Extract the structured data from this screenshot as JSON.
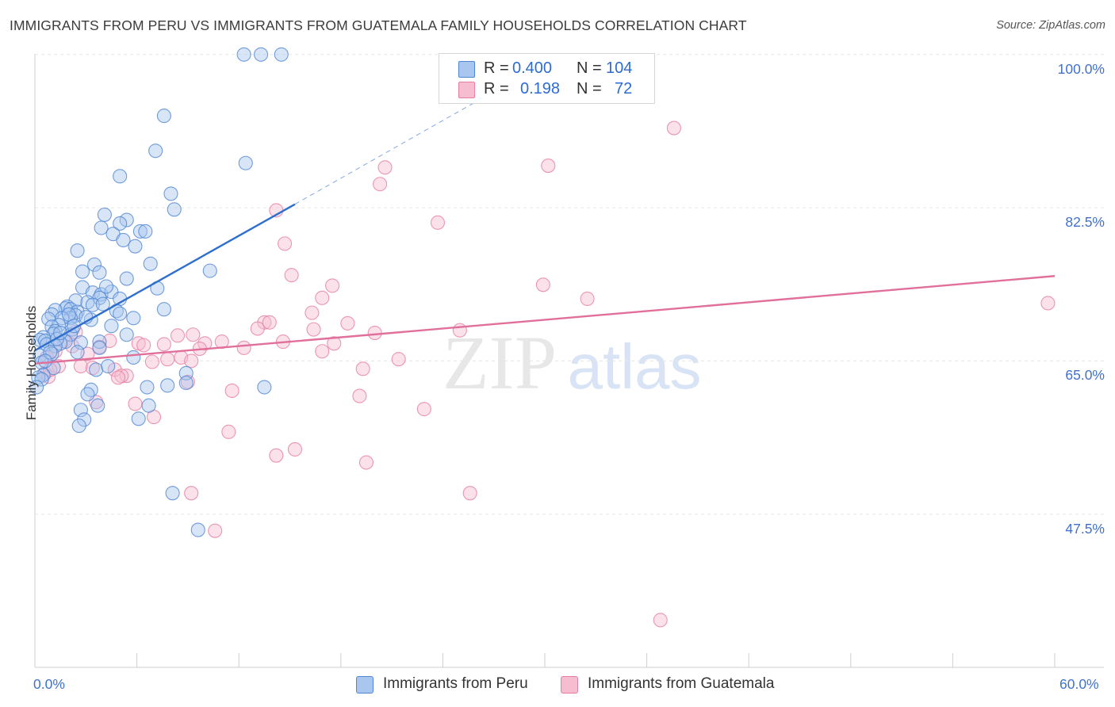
{
  "title": "IMMIGRANTS FROM PERU VS IMMIGRANTS FROM GUATEMALA FAMILY HOUSEHOLDS CORRELATION CHART",
  "source": "Source: ZipAtlas.com",
  "watermark": {
    "zip": "ZIP",
    "atlas": "atlas"
  },
  "legend": {
    "r_label": "R =",
    "n_label": "N =",
    "peru": {
      "r": "0.400",
      "n": "104"
    },
    "guatemala": {
      "r": "0.198",
      "n": "72"
    }
  },
  "colors": {
    "peru_fill": "#a9c6ee",
    "peru_stroke": "#4f86d4",
    "peru_line": "#2e6fce",
    "guat_fill": "#f6bcd0",
    "guat_stroke": "#e67ea3",
    "guat_line": "#e0709a",
    "axis_label": "#3f72cc",
    "grid": "#e6e6e6"
  },
  "chart_data": {
    "type": "scatter",
    "title": "IMMIGRANTS FROM PERU VS IMMIGRANTS FROM GUATEMALA FAMILY HOUSEHOLDS CORRELATION CHART",
    "xlabel": "",
    "ylabel": "Family Households",
    "xlim": [
      0,
      60
    ],
    "ylim": [
      30,
      101.7
    ],
    "x_tick_labels": [
      "0.0%",
      "60.0%"
    ],
    "y_ticks": [
      47.5,
      65.0,
      82.5,
      100.0
    ],
    "y_tick_labels": [
      "47.5%",
      "65.0%",
      "82.5%",
      "100.0%"
    ],
    "grid": true,
    "legend_position": "top-center",
    "series": [
      {
        "name": "Immigrants from Peru",
        "r": 0.4,
        "n": 104,
        "trend": {
          "x": [
            0.0,
            15.3
          ],
          "y": [
            66.2,
            82.9
          ],
          "dashed_extension_to": [
            27.4,
            96.2
          ]
        },
        "points": [
          [
            12.3,
            100
          ],
          [
            13.3,
            100
          ],
          [
            14.5,
            100
          ],
          [
            7.6,
            93.0
          ],
          [
            7.1,
            89.0
          ],
          [
            12.4,
            87.6
          ],
          [
            5.0,
            86.1
          ],
          [
            8.0,
            84.1
          ],
          [
            8.2,
            82.3
          ],
          [
            4.1,
            81.7
          ],
          [
            5.4,
            81.1
          ],
          [
            3.9,
            80.2
          ],
          [
            5.0,
            80.7
          ],
          [
            6.2,
            79.8
          ],
          [
            6.5,
            79.8
          ],
          [
            4.6,
            79.5
          ],
          [
            5.2,
            78.8
          ],
          [
            5.9,
            78.1
          ],
          [
            2.5,
            77.6
          ],
          [
            3.5,
            76.0
          ],
          [
            6.8,
            76.1
          ],
          [
            10.3,
            75.3
          ],
          [
            2.8,
            75.2
          ],
          [
            3.8,
            75.1
          ],
          [
            5.4,
            74.4
          ],
          [
            2.8,
            73.4
          ],
          [
            7.2,
            73.3
          ],
          [
            3.4,
            72.8
          ],
          [
            3.9,
            72.6
          ],
          [
            4.5,
            72.9
          ],
          [
            3.8,
            72.2
          ],
          [
            5.0,
            72.1
          ],
          [
            2.4,
            71.9
          ],
          [
            3.1,
            71.7
          ],
          [
            3.4,
            71.4
          ],
          [
            1.9,
            71.2
          ],
          [
            1.8,
            71.0
          ],
          [
            1.2,
            70.8
          ],
          [
            1.0,
            70.3
          ],
          [
            2.1,
            70.9
          ],
          [
            2.5,
            70.6
          ],
          [
            4.8,
            70.7
          ],
          [
            5.0,
            70.4
          ],
          [
            7.6,
            70.9
          ],
          [
            2.4,
            70.2
          ],
          [
            2.1,
            69.9
          ],
          [
            1.6,
            69.9
          ],
          [
            0.8,
            69.8
          ],
          [
            3.3,
            69.7
          ],
          [
            5.8,
            69.9
          ],
          [
            1.4,
            69.1
          ],
          [
            4.5,
            69.0
          ],
          [
            1.0,
            68.9
          ],
          [
            1.2,
            68.4
          ],
          [
            2.2,
            68.6
          ],
          [
            1.1,
            68.1
          ],
          [
            2.1,
            68.0
          ],
          [
            5.4,
            68.0
          ],
          [
            0.5,
            67.7
          ],
          [
            0.3,
            67.4
          ],
          [
            0.6,
            67.3
          ],
          [
            1.8,
            67.2
          ],
          [
            1.5,
            67.0
          ],
          [
            2.7,
            67.1
          ],
          [
            3.8,
            67.2
          ],
          [
            0.7,
            66.9
          ],
          [
            1.2,
            66.7
          ],
          [
            3.8,
            66.5
          ],
          [
            2.5,
            66.0
          ],
          [
            1.0,
            65.8
          ],
          [
            0.3,
            65.6
          ],
          [
            5.8,
            65.4
          ],
          [
            0.4,
            64.8
          ],
          [
            1.1,
            64.2
          ],
          [
            3.6,
            64.0
          ],
          [
            4.3,
            64.4
          ],
          [
            8.9,
            63.6
          ],
          [
            0.5,
            63.4
          ],
          [
            0.2,
            63.1
          ],
          [
            0.4,
            62.9
          ],
          [
            8.9,
            62.5
          ],
          [
            6.6,
            62.0
          ],
          [
            7.8,
            62.2
          ],
          [
            13.5,
            62.0
          ],
          [
            3.3,
            61.7
          ],
          [
            3.1,
            61.2
          ],
          [
            3.7,
            59.9
          ],
          [
            6.7,
            59.9
          ],
          [
            2.7,
            59.4
          ],
          [
            6.1,
            58.4
          ],
          [
            2.9,
            58.3
          ],
          [
            2.6,
            57.6
          ],
          [
            8.1,
            49.9
          ],
          [
            9.6,
            45.7
          ],
          [
            0.1,
            62.0
          ],
          [
            1.3,
            67.5
          ],
          [
            2.0,
            70.3
          ],
          [
            4.0,
            71.5
          ],
          [
            1.5,
            68.2
          ],
          [
            0.9,
            66.0
          ],
          [
            2.3,
            69.0
          ],
          [
            3.0,
            70.0
          ],
          [
            4.2,
            73.5
          ],
          [
            0.6,
            65.0
          ]
        ]
      },
      {
        "name": "Immigrants from Guatemala",
        "r": 0.198,
        "n": 72,
        "trend": {
          "x": [
            0.0,
            60.0
          ],
          "y": [
            64.7,
            74.7
          ]
        },
        "points": [
          [
            37.6,
            91.6
          ],
          [
            20.6,
            87.1
          ],
          [
            30.2,
            87.3
          ],
          [
            20.3,
            85.2
          ],
          [
            14.2,
            82.2
          ],
          [
            23.7,
            80.8
          ],
          [
            14.7,
            78.4
          ],
          [
            15.1,
            74.8
          ],
          [
            29.9,
            73.7
          ],
          [
            17.5,
            73.6
          ],
          [
            16.9,
            72.2
          ],
          [
            32.5,
            72.1
          ],
          [
            16.3,
            70.5
          ],
          [
            59.6,
            71.6
          ],
          [
            13.5,
            69.4
          ],
          [
            13.8,
            69.4
          ],
          [
            18.4,
            69.3
          ],
          [
            13.1,
            68.7
          ],
          [
            20.0,
            68.2
          ],
          [
            16.4,
            68.6
          ],
          [
            9.3,
            68.0
          ],
          [
            8.4,
            67.9
          ],
          [
            11.0,
            67.2
          ],
          [
            10.0,
            67.0
          ],
          [
            14.6,
            67.2
          ],
          [
            6.1,
            67.0
          ],
          [
            7.6,
            66.9
          ],
          [
            6.4,
            66.8
          ],
          [
            9.7,
            66.4
          ],
          [
            4.4,
            67.3
          ],
          [
            1.7,
            67.3
          ],
          [
            3.8,
            66.6
          ],
          [
            16.9,
            66.1
          ],
          [
            8.6,
            65.4
          ],
          [
            7.8,
            65.2
          ],
          [
            9.2,
            65.0
          ],
          [
            21.4,
            65.2
          ],
          [
            0.7,
            65.4
          ],
          [
            1.4,
            64.4
          ],
          [
            2.7,
            64.4
          ],
          [
            3.4,
            64.2
          ],
          [
            19.3,
            64.1
          ],
          [
            4.7,
            64.0
          ],
          [
            5.4,
            63.3
          ],
          [
            5.1,
            63.3
          ],
          [
            4.9,
            63.1
          ],
          [
            0.6,
            63.6
          ],
          [
            0.8,
            63.2
          ],
          [
            9.0,
            62.6
          ],
          [
            11.6,
            61.6
          ],
          [
            19.1,
            61.0
          ],
          [
            3.6,
            60.3
          ],
          [
            5.9,
            60.1
          ],
          [
            22.9,
            59.5
          ],
          [
            7.0,
            58.6
          ],
          [
            11.4,
            56.9
          ],
          [
            15.3,
            54.9
          ],
          [
            14.2,
            54.2
          ],
          [
            19.5,
            53.4
          ],
          [
            9.2,
            49.9
          ],
          [
            25.6,
            49.9
          ],
          [
            10.6,
            45.6
          ],
          [
            36.8,
            35.4
          ],
          [
            2.4,
            68.3
          ],
          [
            1.2,
            66.1
          ],
          [
            3.1,
            65.8
          ],
          [
            6.9,
            64.9
          ],
          [
            12.3,
            66.5
          ],
          [
            17.6,
            67.0
          ],
          [
            25.0,
            68.5
          ],
          [
            0.9,
            64.0
          ],
          [
            2.2,
            66.7
          ]
        ]
      }
    ]
  },
  "bottom_legend": [
    {
      "label": "Immigrants from Peru"
    },
    {
      "label": "Immigrants from Guatemala"
    }
  ]
}
